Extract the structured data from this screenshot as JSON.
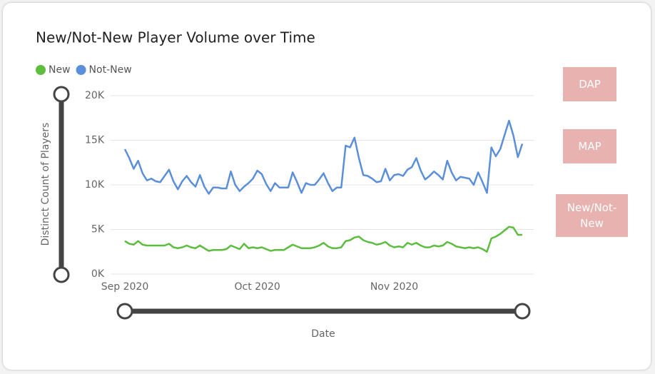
{
  "chart_data": {
    "type": "line",
    "title": "New/Not-New Player Volume over Time",
    "x_label": "Date",
    "y_label": "Distinct Count of Players",
    "categories": [
      "Sep 2020",
      null,
      null,
      null,
      null,
      null,
      null,
      null,
      null,
      null,
      null,
      null,
      null,
      null,
      null,
      null,
      null,
      null,
      null,
      null,
      null,
      null,
      null,
      null,
      null,
      null,
      null,
      null,
      null,
      null,
      "Oct 2020",
      null,
      null,
      null,
      null,
      null,
      null,
      null,
      null,
      null,
      null,
      null,
      null,
      null,
      null,
      null,
      null,
      null,
      null,
      null,
      null,
      null,
      null,
      null,
      null,
      null,
      null,
      null,
      null,
      null,
      null,
      "Nov 2020",
      null,
      null,
      null,
      null,
      null,
      null,
      null,
      null,
      null,
      null,
      null,
      null,
      null,
      null,
      null,
      null,
      null,
      null,
      null,
      null,
      null,
      null,
      null,
      null,
      null,
      null,
      null,
      null,
      null
    ],
    "series": [
      {
        "name": "New",
        "color": "#5cbd3e",
        "values": [
          3700,
          3400,
          3300,
          3700,
          3300,
          3200,
          3200,
          3200,
          3200,
          3200,
          3400,
          3000,
          2900,
          3000,
          3200,
          3000,
          2900,
          3200,
          2900,
          2600,
          2700,
          2700,
          2700,
          2800,
          3200,
          3000,
          2800,
          3400,
          2900,
          3000,
          2900,
          3000,
          2800,
          2600,
          2700,
          2700,
          2700,
          3000,
          3300,
          3100,
          2900,
          2900,
          2900,
          3000,
          3200,
          3500,
          3100,
          2900,
          2900,
          3000,
          3700,
          3800,
          4100,
          4200,
          3800,
          3600,
          3500,
          3300,
          3400,
          3600,
          3200,
          3000,
          3100,
          3000,
          3500,
          3300,
          3500,
          3200,
          3000,
          3000,
          3200,
          3100,
          3200,
          3600,
          3400,
          3100,
          3000,
          2900,
          3000,
          2900,
          3000,
          2800,
          2500,
          4000,
          4200,
          4500,
          4900,
          5300,
          5200,
          4400,
          4400
        ]
      },
      {
        "name": "Not-New",
        "color": "#5b8fd9",
        "values": [
          14000,
          13000,
          11800,
          12700,
          11300,
          10500,
          10700,
          10400,
          10300,
          11000,
          11700,
          10400,
          9500,
          10400,
          11000,
          10300,
          9800,
          11100,
          9800,
          9000,
          9700,
          9700,
          9600,
          9600,
          11500,
          10000,
          9300,
          9800,
          10200,
          10700,
          11600,
          11200,
          10100,
          9300,
          10200,
          9700,
          9700,
          9700,
          11400,
          10300,
          9100,
          10200,
          10000,
          10000,
          10600,
          11300,
          10200,
          9300,
          9700,
          9700,
          14400,
          14200,
          15300,
          13000,
          11100,
          11000,
          10700,
          10300,
          10400,
          11800,
          10500,
          11100,
          11200,
          11000,
          11700,
          12000,
          13000,
          11600,
          10600,
          11000,
          11500,
          11100,
          10600,
          12700,
          11400,
          10500,
          10900,
          10800,
          10700,
          10000,
          11400,
          10300,
          9100,
          14200,
          13200,
          14000,
          15600,
          17200,
          15500,
          13100,
          14600
        ]
      }
    ],
    "ylim": [
      0,
      20000
    ],
    "yticks": [
      {
        "value": 0,
        "label": "0K"
      },
      {
        "value": 5000,
        "label": "5K"
      },
      {
        "value": 10000,
        "label": "10K"
      },
      {
        "value": 15000,
        "label": "15K"
      },
      {
        "value": 20000,
        "label": "20K"
      }
    ],
    "grid": true,
    "buttons": [
      "DAP",
      "MAP",
      "New/Not-New"
    ]
  }
}
